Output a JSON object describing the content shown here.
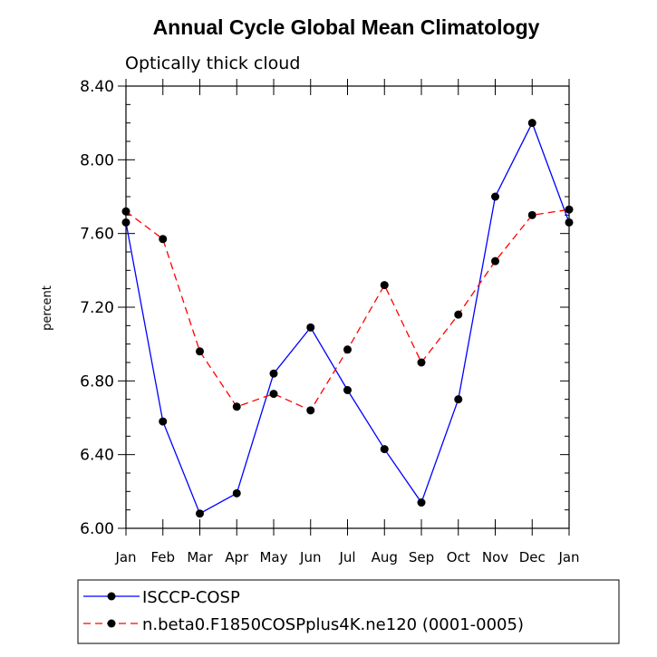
{
  "chart_data": {
    "type": "line",
    "title": "Annual Cycle Global Mean Climatology",
    "subtitle": "Optically thick cloud",
    "xlabel": "",
    "ylabel": "percent",
    "categories": [
      "Jan",
      "Feb",
      "Mar",
      "Apr",
      "May",
      "Jun",
      "Jul",
      "Aug",
      "Sep",
      "Oct",
      "Nov",
      "Dec",
      "Jan"
    ],
    "ylim": [
      6.0,
      8.4
    ],
    "yticks": [
      "6.00",
      "6.40",
      "6.80",
      "7.20",
      "7.60",
      "8.00",
      "8.40"
    ],
    "grid": false,
    "legend_position": "bottom",
    "series": [
      {
        "name": "ISCCP-COSP",
        "color": "#0000ff",
        "dash": "solid",
        "values": [
          7.66,
          6.58,
          6.08,
          6.19,
          6.84,
          7.09,
          6.75,
          6.43,
          6.14,
          6.7,
          7.8,
          8.2,
          7.66
        ]
      },
      {
        "name": "n.beta0.F1850COSPplus4K.ne120 (0001-0005)",
        "color": "#ff0000",
        "dash": "dashed",
        "values": [
          7.72,
          7.57,
          6.96,
          6.66,
          6.73,
          6.64,
          6.97,
          7.32,
          6.9,
          7.16,
          7.45,
          7.7,
          7.73
        ]
      }
    ]
  }
}
